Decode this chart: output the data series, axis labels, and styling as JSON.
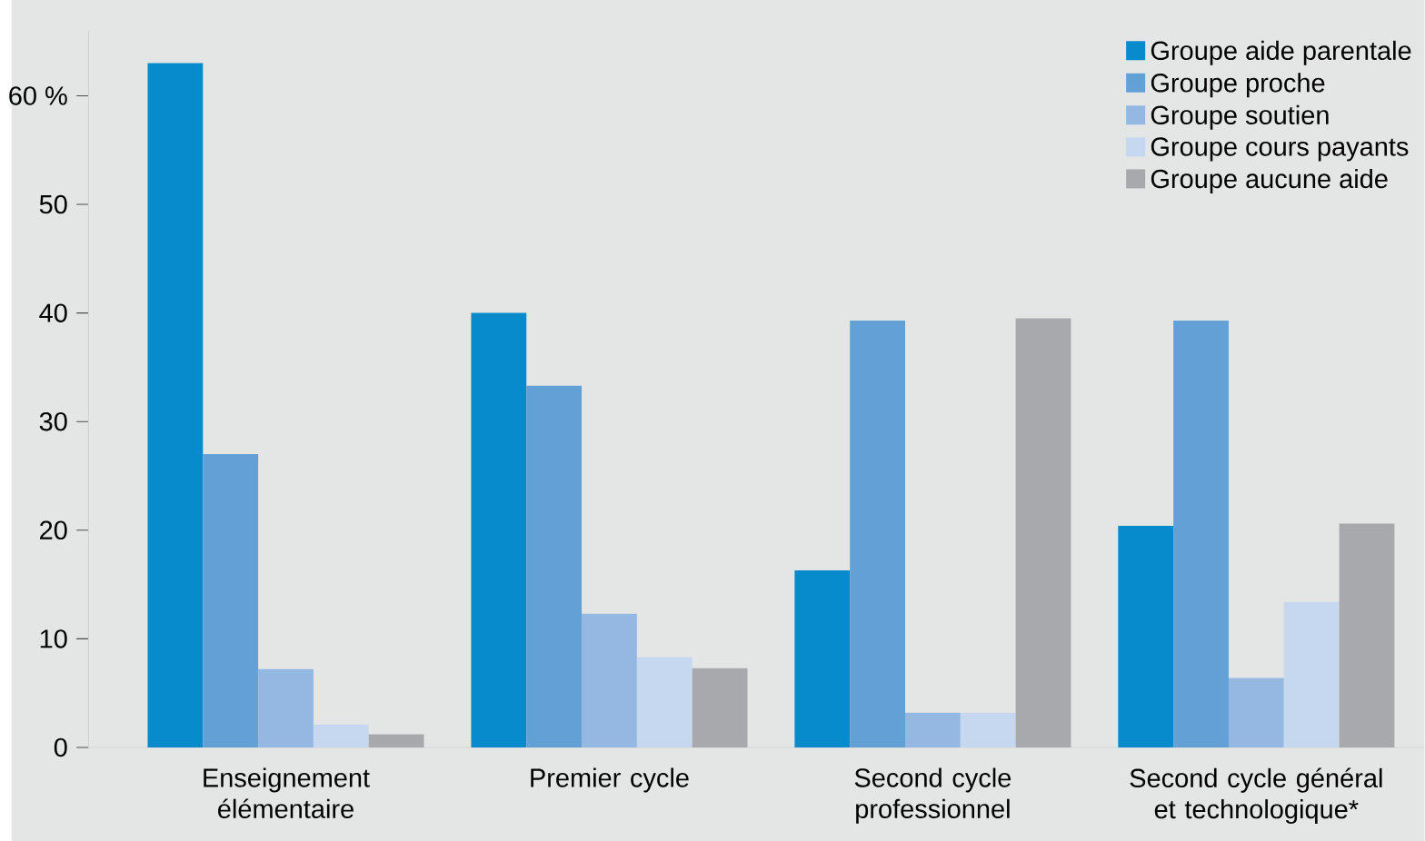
{
  "chart_data": {
    "type": "bar",
    "categories": [
      "Enseignement élémentaire",
      "Premier cycle",
      "Second cycle professionnel",
      "Second cycle général et technologique*"
    ],
    "series": [
      {
        "name": "Groupe aide parentale",
        "color": "#078bcd",
        "values": [
          63,
          40,
          16.3,
          20.4
        ]
      },
      {
        "name": "Groupe proche",
        "color": "#62a0d6",
        "values": [
          27,
          33.3,
          39.3,
          39.3
        ]
      },
      {
        "name": "Groupe soutien",
        "color": "#94b8e2",
        "values": [
          7.2,
          12.3,
          3.2,
          6.4
        ]
      },
      {
        "name": "Groupe cours payants",
        "color": "#c6d8f0",
        "values": [
          2.1,
          8.3,
          3.2,
          13.4
        ]
      },
      {
        "name": "Groupe aucune aide",
        "color": "#a7a9ac",
        "values": [
          1.2,
          7.3,
          39.5,
          20.6
        ]
      }
    ],
    "ylim": [
      0,
      66
    ],
    "yticks": [
      0,
      10,
      20,
      30,
      40,
      50,
      {
        "value": 60,
        "label": "60 %"
      }
    ],
    "grid": false,
    "legend": "top right"
  }
}
